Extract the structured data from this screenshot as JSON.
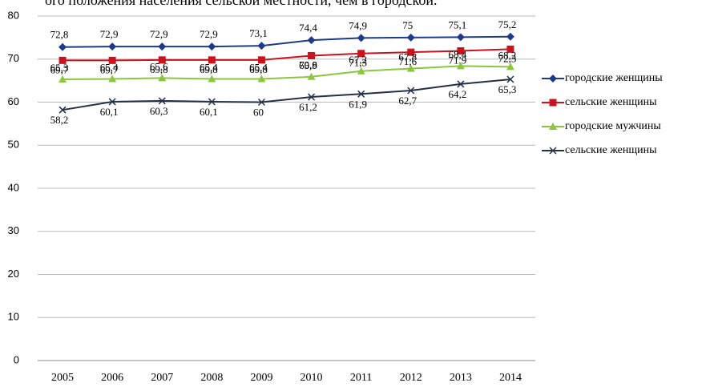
{
  "chart_data": {
    "type": "line",
    "caption": "ого положения населения сельской местности, чем в городской.",
    "categories": [
      "2005",
      "2006",
      "2007",
      "2008",
      "2009",
      "2010",
      "2011",
      "2012",
      "2013",
      "2014"
    ],
    "series": [
      {
        "name": "городские женщины",
        "color": "#1f3a8a",
        "values": [
          72.8,
          72.9,
          72.9,
          72.9,
          73.1,
          74.4,
          74.9,
          75,
          75.1,
          75.2
        ],
        "value_labels": [
          "72,8",
          "72,9",
          "72,9",
          "72,9",
          "73,1",
          "74,4",
          "74,9",
          "75",
          "75,1",
          "75,2"
        ]
      },
      {
        "name": "сельские женщины",
        "color": "#c8141e",
        "values": [
          69.7,
          69.7,
          69.8,
          69.8,
          69.8,
          70.8,
          71.3,
          71.6,
          71.9,
          72.3
        ],
        "value_labels": [
          "69,7",
          "69,7",
          "69,8",
          "69,8",
          "69,8",
          "70,8",
          "71,3",
          "71,6",
          "71,9",
          "72,3"
        ]
      },
      {
        "name": "городские мужчины",
        "color": "#8cc63f",
        "values": [
          65.3,
          65.4,
          65.6,
          65.4,
          65.4,
          65.9,
          67.2,
          67.8,
          68.4,
          68.2
        ],
        "value_labels": [
          "65,3",
          "65,4",
          "65,6",
          "65,4",
          "65,4",
          "65,9",
          "67,2",
          "67,8",
          "68,4",
          "68,2"
        ]
      },
      {
        "name": "сельские женщины",
        "color": "#243047",
        "values": [
          58.2,
          60.1,
          60.3,
          60.1,
          60,
          61.2,
          61.9,
          62.7,
          64.2,
          65.3
        ],
        "value_labels": [
          "58,2",
          "60,1",
          "60,3",
          "60,1",
          "60",
          "61,2",
          "61,9",
          "62,7",
          "64,2",
          "65,3"
        ]
      }
    ],
    "ylim": [
      0,
      80
    ],
    "yticks": [
      0,
      10,
      20,
      30,
      40,
      50,
      60,
      70,
      80
    ],
    "grid": true,
    "legend": "right"
  }
}
